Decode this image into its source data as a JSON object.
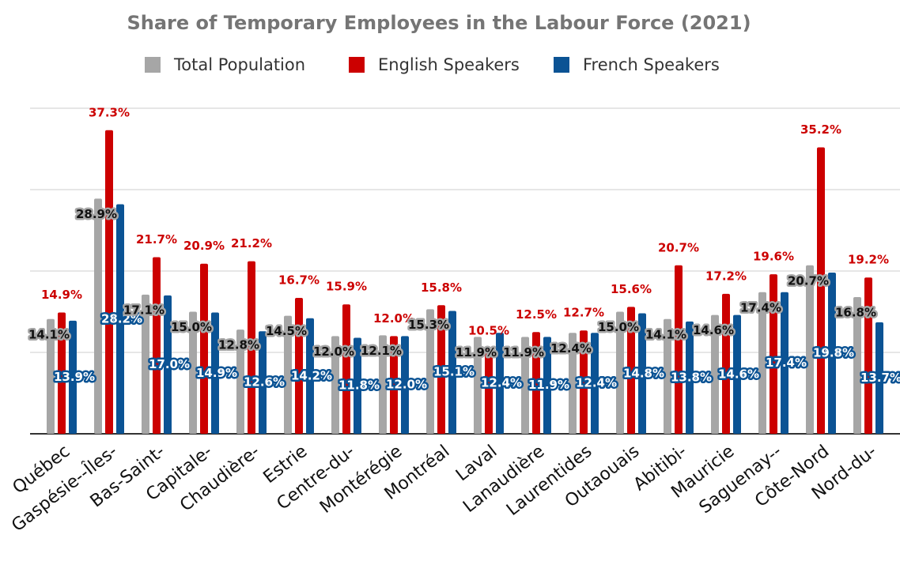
{
  "chart_data": {
    "type": "bar",
    "title": "Share of Temporary Employees in the Labour Force (2021)",
    "categories": [
      "Québec",
      "Gaspésie--Îles-",
      "Bas-Saint-",
      "Capitale-",
      "Chaudière-",
      "Estrie",
      "Centre-du-",
      "Montérégie",
      "Montréal",
      "Laval",
      "Lanaudière",
      "Laurentides",
      "Outaouais",
      "Abitibi-",
      "Mauricie",
      "Saguenay--",
      "Côte-Nord",
      "Nord-du-"
    ],
    "series": [
      {
        "name": "Total Population",
        "color": "#a6a6a6",
        "values": [
          14.1,
          28.9,
          17.1,
          15.0,
          12.8,
          14.5,
          12.0,
          12.1,
          15.3,
          11.9,
          11.9,
          12.4,
          15.0,
          14.1,
          14.6,
          17.4,
          20.7,
          16.8
        ],
        "value_labels": [
          "14.1%",
          "28.9%",
          "17.1%",
          "15.0%",
          "12.8%",
          "14.5%",
          "12.0%",
          "12.1%",
          "15.3%",
          "11.9%",
          "11.9%",
          "12.4%",
          "15.0%",
          "14.1%",
          "14.6%",
          "17.4%",
          "20.7%",
          "16.8%"
        ]
      },
      {
        "name": "English Speakers",
        "color": "#cc0000",
        "values": [
          14.9,
          37.3,
          21.7,
          20.9,
          21.2,
          16.7,
          15.9,
          12.0,
          15.8,
          10.5,
          12.5,
          12.7,
          15.6,
          20.7,
          17.2,
          19.6,
          35.2,
          19.2
        ],
        "value_labels": [
          "14.9%",
          "37.3%",
          "21.7%",
          "20.9%",
          "21.2%",
          "16.7%",
          "15.9%",
          "12.0%",
          "15.8%",
          "10.5%",
          "12.5%",
          "12.7%",
          "15.6%",
          "20.7%",
          "17.2%",
          "19.6%",
          "35.2%",
          "19.2%"
        ]
      },
      {
        "name": "French Speakers",
        "color": "#0b5394",
        "values": [
          13.9,
          28.2,
          17.0,
          14.9,
          12.6,
          14.2,
          11.8,
          12.0,
          15.1,
          12.4,
          11.9,
          12.4,
          14.8,
          13.8,
          14.6,
          17.4,
          19.8,
          13.7
        ],
        "value_labels": [
          "13.9%",
          "28.2%",
          "17.0%",
          "14.9%",
          "12.6%",
          "14.2%",
          "11.8%",
          "12.0%",
          "15.1%",
          "12.4%",
          "11.9%",
          "12.4%",
          "14.8%",
          "13.8%",
          "14.6%",
          "17.4%",
          "19.8%",
          "13.7%"
        ]
      }
    ],
    "ylim": [
      0,
      40
    ],
    "yticks": [
      0,
      10,
      20,
      30,
      40
    ],
    "grid": true,
    "legend": "top"
  }
}
